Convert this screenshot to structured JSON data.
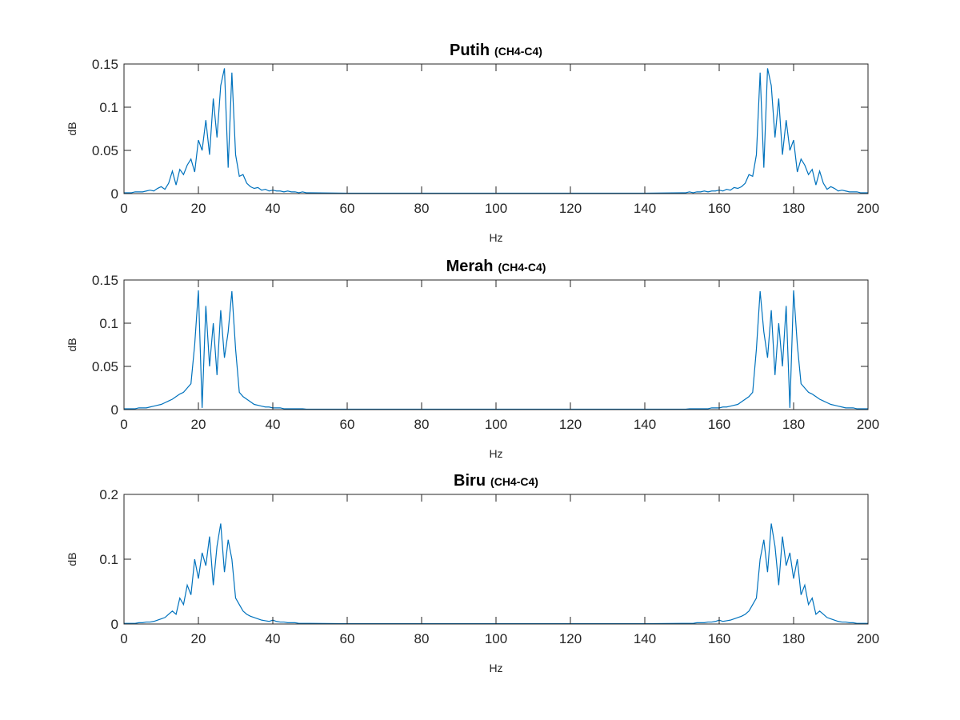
{
  "chart_data": [
    {
      "type": "line",
      "title": "Putih",
      "subtitle": "(CH4-C4)",
      "xlabel": "Hz",
      "ylabel": "dB",
      "color": "#0072bd",
      "xlim": [
        0,
        200
      ],
      "xticks": [
        0,
        20,
        40,
        60,
        80,
        100,
        120,
        140,
        160,
        180,
        200
      ],
      "ylim": [
        0,
        0.15
      ],
      "yticks": [
        0,
        0.05,
        0.1,
        0.15
      ],
      "x": [
        0,
        1,
        2,
        3,
        4,
        5,
        6,
        7,
        8,
        9,
        10,
        11,
        12,
        13,
        14,
        15,
        16,
        17,
        18,
        19,
        20,
        21,
        22,
        23,
        24,
        25,
        26,
        27,
        28,
        29,
        30,
        31,
        32,
        33,
        34,
        35,
        36,
        37,
        38,
        39,
        40,
        41,
        42,
        43,
        44,
        45,
        46,
        47,
        48,
        49,
        50,
        60,
        70,
        80,
        90,
        100,
        110,
        120,
        130,
        140,
        150,
        151,
        152,
        153,
        154,
        155,
        156,
        157,
        158,
        159,
        160,
        161,
        162,
        163,
        164,
        165,
        166,
        167,
        168,
        169,
        170,
        171,
        172,
        173,
        174,
        175,
        176,
        177,
        178,
        179,
        180,
        181,
        182,
        183,
        184,
        185,
        186,
        187,
        188,
        189,
        190,
        191,
        192,
        193,
        194,
        195,
        196,
        197,
        198,
        199,
        200
      ],
      "values": [
        0.001,
        0.001,
        0.001,
        0.002,
        0.002,
        0.002,
        0.003,
        0.004,
        0.003,
        0.006,
        0.008,
        0.005,
        0.012,
        0.026,
        0.01,
        0.028,
        0.022,
        0.033,
        0.04,
        0.025,
        0.062,
        0.05,
        0.085,
        0.045,
        0.11,
        0.065,
        0.125,
        0.145,
        0.03,
        0.14,
        0.045,
        0.02,
        0.022,
        0.012,
        0.008,
        0.006,
        0.007,
        0.004,
        0.005,
        0.003,
        0.004,
        0.003,
        0.003,
        0.002,
        0.003,
        0.002,
        0.002,
        0.001,
        0.002,
        0.001,
        0.001,
        0.0005,
        0.0005,
        0.0005,
        0.0005,
        0.0005,
        0.0005,
        0.0005,
        0.0005,
        0.0005,
        0.001,
        0.001,
        0.002,
        0.001,
        0.002,
        0.002,
        0.003,
        0.002,
        0.003,
        0.003,
        0.004,
        0.003,
        0.005,
        0.004,
        0.007,
        0.006,
        0.008,
        0.012,
        0.022,
        0.02,
        0.045,
        0.14,
        0.03,
        0.145,
        0.125,
        0.065,
        0.11,
        0.045,
        0.085,
        0.05,
        0.062,
        0.025,
        0.04,
        0.033,
        0.022,
        0.028,
        0.01,
        0.026,
        0.012,
        0.005,
        0.008,
        0.006,
        0.003,
        0.004,
        0.003,
        0.002,
        0.002,
        0.002,
        0.001,
        0.001,
        0.001
      ]
    },
    {
      "type": "line",
      "title": "Merah",
      "subtitle": "(CH4-C4)",
      "xlabel": "Hz",
      "ylabel": "dB",
      "color": "#0072bd",
      "xlim": [
        0,
        200
      ],
      "xticks": [
        0,
        20,
        40,
        60,
        80,
        100,
        120,
        140,
        160,
        180,
        200
      ],
      "ylim": [
        0,
        0.15
      ],
      "yticks": [
        0,
        0.05,
        0.1,
        0.15
      ],
      "x": [
        0,
        1,
        2,
        3,
        4,
        5,
        6,
        7,
        8,
        9,
        10,
        11,
        12,
        13,
        14,
        15,
        16,
        17,
        18,
        19,
        20,
        21,
        22,
        23,
        24,
        25,
        26,
        27,
        28,
        29,
        30,
        31,
        32,
        33,
        34,
        35,
        36,
        37,
        38,
        39,
        40,
        41,
        42,
        43,
        44,
        45,
        46,
        47,
        48,
        49,
        50,
        60,
        70,
        80,
        90,
        100,
        110,
        120,
        130,
        140,
        150,
        151,
        152,
        153,
        154,
        155,
        156,
        157,
        158,
        159,
        160,
        161,
        162,
        163,
        164,
        165,
        166,
        167,
        168,
        169,
        170,
        171,
        172,
        173,
        174,
        175,
        176,
        177,
        178,
        179,
        180,
        181,
        182,
        183,
        184,
        185,
        186,
        187,
        188,
        189,
        190,
        191,
        192,
        193,
        194,
        195,
        196,
        197,
        198,
        199,
        200
      ],
      "values": [
        0.001,
        0.001,
        0.001,
        0.001,
        0.002,
        0.002,
        0.002,
        0.003,
        0.004,
        0.005,
        0.006,
        0.008,
        0.01,
        0.012,
        0.015,
        0.018,
        0.02,
        0.025,
        0.03,
        0.075,
        0.138,
        0.002,
        0.12,
        0.05,
        0.1,
        0.04,
        0.115,
        0.06,
        0.09,
        0.137,
        0.07,
        0.02,
        0.015,
        0.012,
        0.009,
        0.006,
        0.005,
        0.004,
        0.003,
        0.003,
        0.002,
        0.002,
        0.002,
        0.001,
        0.001,
        0.001,
        0.001,
        0.001,
        0.001,
        0.0005,
        0.0005,
        0.0005,
        0.0005,
        0.0005,
        0.0005,
        0.0005,
        0.0005,
        0.0005,
        0.0005,
        0.0005,
        0.0005,
        0.0005,
        0.001,
        0.001,
        0.001,
        0.001,
        0.001,
        0.001,
        0.002,
        0.002,
        0.002,
        0.003,
        0.003,
        0.004,
        0.005,
        0.006,
        0.009,
        0.012,
        0.015,
        0.02,
        0.07,
        0.137,
        0.09,
        0.06,
        0.115,
        0.04,
        0.1,
        0.05,
        0.12,
        0.002,
        0.138,
        0.075,
        0.03,
        0.025,
        0.02,
        0.018,
        0.015,
        0.012,
        0.01,
        0.008,
        0.006,
        0.005,
        0.004,
        0.003,
        0.002,
        0.002,
        0.002,
        0.001,
        0.001,
        0.001,
        0.001
      ]
    },
    {
      "type": "line",
      "title": "Biru",
      "subtitle": "(CH4-C4)",
      "xlabel": "Hz",
      "ylabel": "dB",
      "color": "#0072bd",
      "xlim": [
        0,
        200
      ],
      "xticks": [
        0,
        20,
        40,
        60,
        80,
        100,
        120,
        140,
        160,
        180,
        200
      ],
      "ylim": [
        0,
        0.2
      ],
      "yticks": [
        0,
        0.1,
        0.2
      ],
      "x": [
        0,
        1,
        2,
        3,
        4,
        5,
        6,
        7,
        8,
        9,
        10,
        11,
        12,
        13,
        14,
        15,
        16,
        17,
        18,
        19,
        20,
        21,
        22,
        23,
        24,
        25,
        26,
        27,
        28,
        29,
        30,
        31,
        32,
        33,
        34,
        35,
        36,
        37,
        38,
        39,
        40,
        41,
        42,
        43,
        44,
        45,
        46,
        47,
        48,
        49,
        50,
        60,
        70,
        80,
        90,
        100,
        110,
        120,
        130,
        140,
        150,
        151,
        152,
        153,
        154,
        155,
        156,
        157,
        158,
        159,
        160,
        161,
        162,
        163,
        164,
        165,
        166,
        167,
        168,
        169,
        170,
        171,
        172,
        173,
        174,
        175,
        176,
        177,
        178,
        179,
        180,
        181,
        182,
        183,
        184,
        185,
        186,
        187,
        188,
        189,
        190,
        191,
        192,
        193,
        194,
        195,
        196,
        197,
        198,
        199,
        200
      ],
      "values": [
        0.001,
        0.001,
        0.001,
        0.001,
        0.002,
        0.002,
        0.003,
        0.003,
        0.004,
        0.006,
        0.008,
        0.01,
        0.015,
        0.02,
        0.015,
        0.04,
        0.03,
        0.06,
        0.045,
        0.1,
        0.07,
        0.11,
        0.09,
        0.135,
        0.06,
        0.12,
        0.155,
        0.08,
        0.13,
        0.1,
        0.04,
        0.03,
        0.02,
        0.015,
        0.012,
        0.01,
        0.008,
        0.006,
        0.005,
        0.004,
        0.006,
        0.004,
        0.003,
        0.003,
        0.002,
        0.002,
        0.002,
        0.001,
        0.001,
        0.001,
        0.001,
        0.0005,
        0.0005,
        0.0005,
        0.0005,
        0.0005,
        0.0005,
        0.0005,
        0.0005,
        0.0005,
        0.001,
        0.001,
        0.001,
        0.001,
        0.002,
        0.002,
        0.002,
        0.003,
        0.003,
        0.004,
        0.006,
        0.004,
        0.005,
        0.006,
        0.008,
        0.01,
        0.012,
        0.015,
        0.02,
        0.03,
        0.04,
        0.1,
        0.13,
        0.08,
        0.155,
        0.12,
        0.06,
        0.135,
        0.09,
        0.11,
        0.07,
        0.1,
        0.045,
        0.06,
        0.03,
        0.04,
        0.015,
        0.02,
        0.015,
        0.01,
        0.008,
        0.006,
        0.004,
        0.003,
        0.003,
        0.002,
        0.002,
        0.001,
        0.001,
        0.001,
        0.001
      ]
    }
  ]
}
